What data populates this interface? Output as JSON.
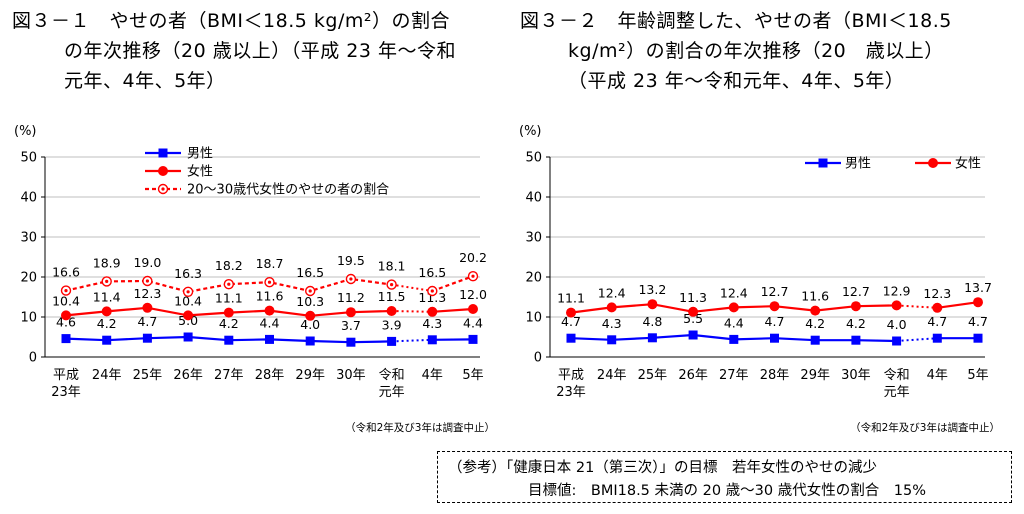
{
  "figures": [
    {
      "title_lines": [
        "図３－１　やせの者（BMI＜18.5 kg/m²）の割合",
        "の年次推移（20 歳以上）（平成 23 年～令和",
        "元年、4年、5年）"
      ],
      "chart_data": {
        "type": "line",
        "unit_label": "(%)",
        "ylim": [
          0,
          50
        ],
        "yticks": [
          0,
          10,
          20,
          30,
          40,
          50
        ],
        "grid": true,
        "categories": [
          "平成\n23年",
          "24年",
          "25年",
          "26年",
          "27年",
          "28年",
          "29年",
          "30年",
          "令和\n元年",
          "4年",
          "5年"
        ],
        "series": [
          {
            "name": "男性",
            "values": [
              4.6,
              4.2,
              4.7,
              5.0,
              4.2,
              4.4,
              4.0,
              3.7,
              3.9,
              4.3,
              4.4
            ],
            "color": "#0000ff",
            "marker": "square",
            "style": "solid"
          },
          {
            "name": "女性",
            "values": [
              10.4,
              11.4,
              12.3,
              10.4,
              11.1,
              11.6,
              10.3,
              11.2,
              11.5,
              11.3,
              12.0
            ],
            "color": "#ff0000",
            "marker": "circle",
            "style": "solid"
          },
          {
            "name": "20～30歳代女性のやせの者の割合",
            "values": [
              16.6,
              18.9,
              19.0,
              16.3,
              18.2,
              18.7,
              16.5,
              19.5,
              18.1,
              16.5,
              20.2
            ],
            "color": "#ff0000",
            "marker": "ring",
            "style": "dashed"
          }
        ],
        "gap_after_index": 8,
        "legend_position": "top",
        "note": "（令和2年及び3年は調査中止）"
      }
    },
    {
      "title_lines": [
        "図３－２　年齢調整した、やせの者（BMI＜18.5",
        "kg/m²）の割合の年次推移（20　歳以上）",
        "（平成 23 年～令和元年、4年、5年）"
      ],
      "chart_data": {
        "type": "line",
        "unit_label": "(%)",
        "ylim": [
          0,
          50
        ],
        "yticks": [
          0,
          10,
          20,
          30,
          40,
          50
        ],
        "grid": true,
        "categories": [
          "平成\n23年",
          "24年",
          "25年",
          "26年",
          "27年",
          "28年",
          "29年",
          "30年",
          "令和\n元年",
          "4年",
          "5年"
        ],
        "series": [
          {
            "name": "男性",
            "values": [
              4.7,
              4.3,
              4.8,
              5.5,
              4.4,
              4.7,
              4.2,
              4.2,
              4.0,
              4.7,
              4.7
            ],
            "color": "#0000ff",
            "marker": "square",
            "style": "solid"
          },
          {
            "name": "女性",
            "values": [
              11.1,
              12.4,
              13.2,
              11.3,
              12.4,
              12.7,
              11.6,
              12.7,
              12.9,
              12.3,
              13.7
            ],
            "color": "#ff0000",
            "marker": "circle",
            "style": "solid"
          }
        ],
        "gap_after_index": 8,
        "legend_position": "top",
        "note": "（令和2年及び3年は調査中止）"
      }
    }
  ],
  "reference": {
    "line1": "（参考）「健康日本 21（第三次）」の目標　若年女性のやせの減少",
    "line2": "目標値:　BMI18.5 未満の 20 歳～30 歳代女性の割合　15%"
  }
}
